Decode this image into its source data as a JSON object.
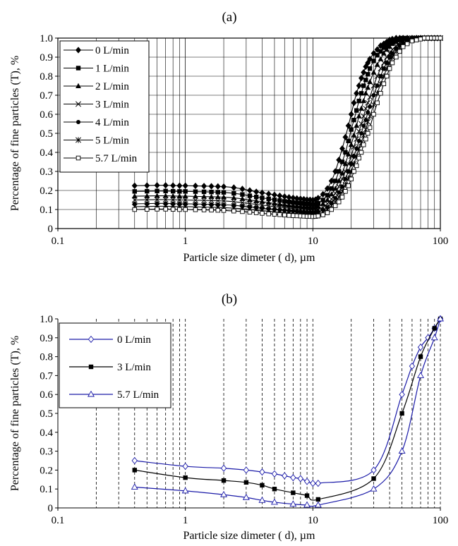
{
  "chart_data": [
    {
      "panel_label": "(a)",
      "type": "line",
      "xscale": "log",
      "xlim": [
        0.1,
        100
      ],
      "ylim": [
        0,
        1.0
      ],
      "x_ticks": [
        "0.1",
        "1",
        "10",
        "100"
      ],
      "y_ticks": [
        "0",
        "0.1",
        "0.2",
        "0.3",
        "0.4",
        "0.5",
        "0.6",
        "0.7",
        "0.8",
        "0.9",
        "1.0"
      ],
      "xlabel": "Particle size dimeter ( d), µm",
      "ylabel": "Percentage of fine particles (T), %",
      "grid": "major and minor, solid",
      "legend_position": "top-left",
      "x": [
        0.4,
        0.5,
        0.6,
        0.7,
        0.8,
        0.9,
        1,
        1.2,
        1.4,
        1.6,
        1.8,
        2,
        2.4,
        2.8,
        3.2,
        3.6,
        4,
        4.5,
        5,
        5.5,
        6,
        6.5,
        7,
        7.5,
        8,
        8.5,
        9,
        9.5,
        10,
        10.5,
        11,
        12,
        13,
        14,
        15,
        16,
        17,
        18,
        19,
        20,
        21,
        22,
        23,
        24,
        25,
        26,
        27,
        28,
        30,
        32,
        34,
        36,
        38,
        40,
        42,
        45,
        48,
        51,
        55,
        60,
        65,
        70,
        75,
        80,
        85,
        90,
        95,
        100
      ],
      "series": [
        {
          "name": "0 L/min",
          "marker": "diamond-filled",
          "color": "#000000",
          "values": [
            0.225,
            0.226,
            0.227,
            0.227,
            0.226,
            0.225,
            0.225,
            0.224,
            0.223,
            0.222,
            0.221,
            0.22,
            0.215,
            0.208,
            0.2,
            0.193,
            0.188,
            0.182,
            0.177,
            0.172,
            0.168,
            0.164,
            0.161,
            0.158,
            0.156,
            0.154,
            0.152,
            0.151,
            0.15,
            0.152,
            0.16,
            0.18,
            0.21,
            0.25,
            0.3,
            0.36,
            0.42,
            0.48,
            0.54,
            0.6,
            0.66,
            0.71,
            0.75,
            0.79,
            0.82,
            0.85,
            0.87,
            0.89,
            0.92,
            0.94,
            0.96,
            0.97,
            0.98,
            0.99,
            0.995,
            1,
            1,
            1,
            1,
            1,
            1,
            1,
            1,
            1,
            1,
            1,
            1,
            1
          ]
        },
        {
          "name": "1 L/min",
          "marker": "square-filled",
          "color": "#000000",
          "values": [
            0.195,
            0.196,
            0.197,
            0.197,
            0.196,
            0.195,
            0.195,
            0.194,
            0.193,
            0.192,
            0.191,
            0.19,
            0.185,
            0.179,
            0.172,
            0.166,
            0.161,
            0.156,
            0.151,
            0.147,
            0.143,
            0.14,
            0.137,
            0.135,
            0.133,
            0.131,
            0.129,
            0.128,
            0.127,
            0.128,
            0.133,
            0.15,
            0.175,
            0.21,
            0.25,
            0.3,
            0.35,
            0.4,
            0.46,
            0.52,
            0.57,
            0.62,
            0.67,
            0.71,
            0.75,
            0.78,
            0.81,
            0.84,
            0.88,
            0.91,
            0.93,
            0.95,
            0.96,
            0.975,
            0.985,
            0.99,
            0.995,
            1,
            1,
            1,
            1,
            1,
            1,
            1,
            1,
            1,
            1,
            1
          ]
        },
        {
          "name": "2 L/min",
          "marker": "triangle-filled",
          "color": "#000000",
          "values": [
            0.17,
            0.171,
            0.172,
            0.172,
            0.171,
            0.17,
            0.17,
            0.169,
            0.168,
            0.167,
            0.166,
            0.165,
            0.161,
            0.156,
            0.15,
            0.145,
            0.141,
            0.136,
            0.132,
            0.128,
            0.125,
            0.122,
            0.12,
            0.118,
            0.116,
            0.114,
            0.113,
            0.112,
            0.111,
            0.112,
            0.116,
            0.13,
            0.15,
            0.18,
            0.21,
            0.25,
            0.29,
            0.34,
            0.39,
            0.44,
            0.49,
            0.54,
            0.59,
            0.63,
            0.67,
            0.71,
            0.74,
            0.77,
            0.82,
            0.86,
            0.89,
            0.92,
            0.94,
            0.955,
            0.97,
            0.98,
            0.99,
            0.995,
            1,
            1,
            1,
            1,
            1,
            1,
            1,
            1,
            1,
            1
          ]
        },
        {
          "name": "3 L/min",
          "marker": "x",
          "color": "#000000",
          "values": [
            0.15,
            0.151,
            0.152,
            0.152,
            0.151,
            0.15,
            0.15,
            0.149,
            0.148,
            0.147,
            0.146,
            0.145,
            0.141,
            0.136,
            0.131,
            0.127,
            0.123,
            0.119,
            0.115,
            0.112,
            0.109,
            0.107,
            0.105,
            0.103,
            0.101,
            0.1,
            0.099,
            0.098,
            0.097,
            0.098,
            0.101,
            0.112,
            0.13,
            0.155,
            0.185,
            0.22,
            0.26,
            0.3,
            0.34,
            0.38,
            0.43,
            0.47,
            0.51,
            0.55,
            0.59,
            0.63,
            0.66,
            0.69,
            0.75,
            0.8,
            0.84,
            0.87,
            0.9,
            0.92,
            0.94,
            0.96,
            0.975,
            0.985,
            0.99,
            1,
            1,
            1,
            1,
            1,
            1,
            1,
            1,
            1
          ]
        },
        {
          "name": "4 L/min",
          "marker": "circle-filled",
          "color": "#000000",
          "values": [
            0.13,
            0.131,
            0.132,
            0.132,
            0.131,
            0.13,
            0.13,
            0.129,
            0.128,
            0.127,
            0.126,
            0.125,
            0.122,
            0.118,
            0.114,
            0.11,
            0.107,
            0.103,
            0.1,
            0.097,
            0.095,
            0.093,
            0.091,
            0.09,
            0.088,
            0.087,
            0.086,
            0.085,
            0.084,
            0.085,
            0.088,
            0.097,
            0.112,
            0.135,
            0.16,
            0.19,
            0.22,
            0.26,
            0.3,
            0.34,
            0.38,
            0.42,
            0.46,
            0.5,
            0.54,
            0.57,
            0.61,
            0.64,
            0.7,
            0.75,
            0.8,
            0.84,
            0.87,
            0.9,
            0.92,
            0.945,
            0.96,
            0.975,
            0.985,
            0.995,
            1,
            1,
            1,
            1,
            1,
            1,
            1,
            1
          ]
        },
        {
          "name": "5 L/min",
          "marker": "star",
          "color": "#000000",
          "values": [
            0.115,
            0.116,
            0.117,
            0.117,
            0.116,
            0.115,
            0.115,
            0.114,
            0.113,
            0.112,
            0.111,
            0.11,
            0.107,
            0.104,
            0.1,
            0.097,
            0.094,
            0.091,
            0.088,
            0.086,
            0.084,
            0.082,
            0.08,
            0.079,
            0.078,
            0.077,
            0.076,
            0.075,
            0.075,
            0.076,
            0.078,
            0.086,
            0.1,
            0.12,
            0.14,
            0.165,
            0.195,
            0.23,
            0.265,
            0.3,
            0.34,
            0.38,
            0.42,
            0.45,
            0.49,
            0.52,
            0.56,
            0.59,
            0.65,
            0.71,
            0.76,
            0.8,
            0.84,
            0.87,
            0.9,
            0.93,
            0.95,
            0.97,
            0.98,
            0.99,
            1,
            1,
            1,
            1,
            1,
            1,
            1,
            1
          ]
        },
        {
          "name": "5.7 L/min",
          "marker": "square-open",
          "color": "#000000",
          "values": [
            0.1,
            0.101,
            0.102,
            0.102,
            0.101,
            0.1,
            0.1,
            0.099,
            0.098,
            0.097,
            0.096,
            0.095,
            0.092,
            0.089,
            0.086,
            0.083,
            0.08,
            0.077,
            0.075,
            0.073,
            0.071,
            0.069,
            0.068,
            0.067,
            0.066,
            0.065,
            0.064,
            0.064,
            0.063,
            0.064,
            0.066,
            0.072,
            0.083,
            0.1,
            0.12,
            0.14,
            0.165,
            0.195,
            0.225,
            0.26,
            0.3,
            0.33,
            0.37,
            0.4,
            0.44,
            0.47,
            0.5,
            0.53,
            0.6,
            0.66,
            0.71,
            0.76,
            0.8,
            0.84,
            0.87,
            0.9,
            0.93,
            0.955,
            0.97,
            0.985,
            0.99,
            0.995,
            1,
            1,
            1,
            1,
            1,
            1
          ]
        }
      ]
    },
    {
      "panel_label": "(b)",
      "type": "line",
      "xscale": "log",
      "xlim": [
        0.1,
        100
      ],
      "ylim": [
        0,
        1.0
      ],
      "x_ticks": [
        "0.1",
        "1",
        "10",
        "100"
      ],
      "y_ticks": [
        "0",
        "0.1",
        "0.2",
        "0.3",
        "0.4",
        "0.5",
        "0.6",
        "0.7",
        "0.8",
        "0.9",
        "1.0"
      ],
      "xlabel": "Particle size dimeter ( d), µm",
      "ylabel": "Percentage of fine particles (T), %",
      "grid": "vertical minor dashed",
      "legend_position": "top-left",
      "series": [
        {
          "name": "0 L/min",
          "marker": "diamond-open",
          "color": "#1a1aa8",
          "x": [
            0.4,
            1,
            2,
            3,
            4,
            5,
            6,
            7,
            8,
            9,
            10,
            11,
            30,
            50,
            60,
            70,
            80,
            90,
            100
          ],
          "values": [
            0.25,
            0.22,
            0.21,
            0.2,
            0.19,
            0.18,
            0.17,
            0.16,
            0.155,
            0.14,
            0.13,
            0.13,
            0.2,
            0.6,
            0.75,
            0.85,
            0.9,
            0.95,
            1.0
          ]
        },
        {
          "name": "3 L/min",
          "marker": "square-filled",
          "color": "#000000",
          "x": [
            0.4,
            1,
            2,
            3,
            4,
            5,
            7,
            9,
            11,
            30,
            50,
            70,
            90,
            100
          ],
          "values": [
            0.2,
            0.16,
            0.145,
            0.135,
            0.12,
            0.1,
            0.08,
            0.065,
            0.045,
            0.155,
            0.5,
            0.8,
            0.95,
            1.0
          ]
        },
        {
          "name": "5.7 L/min",
          "marker": "triangle-open",
          "color": "#1a1aa8",
          "x": [
            0.4,
            1,
            2,
            3,
            4,
            5,
            7,
            9,
            11,
            30,
            50,
            70,
            90,
            100
          ],
          "values": [
            0.11,
            0.09,
            0.07,
            0.055,
            0.04,
            0.03,
            0.02,
            0.015,
            0.015,
            0.1,
            0.3,
            0.7,
            0.9,
            1.0
          ]
        }
      ]
    }
  ]
}
